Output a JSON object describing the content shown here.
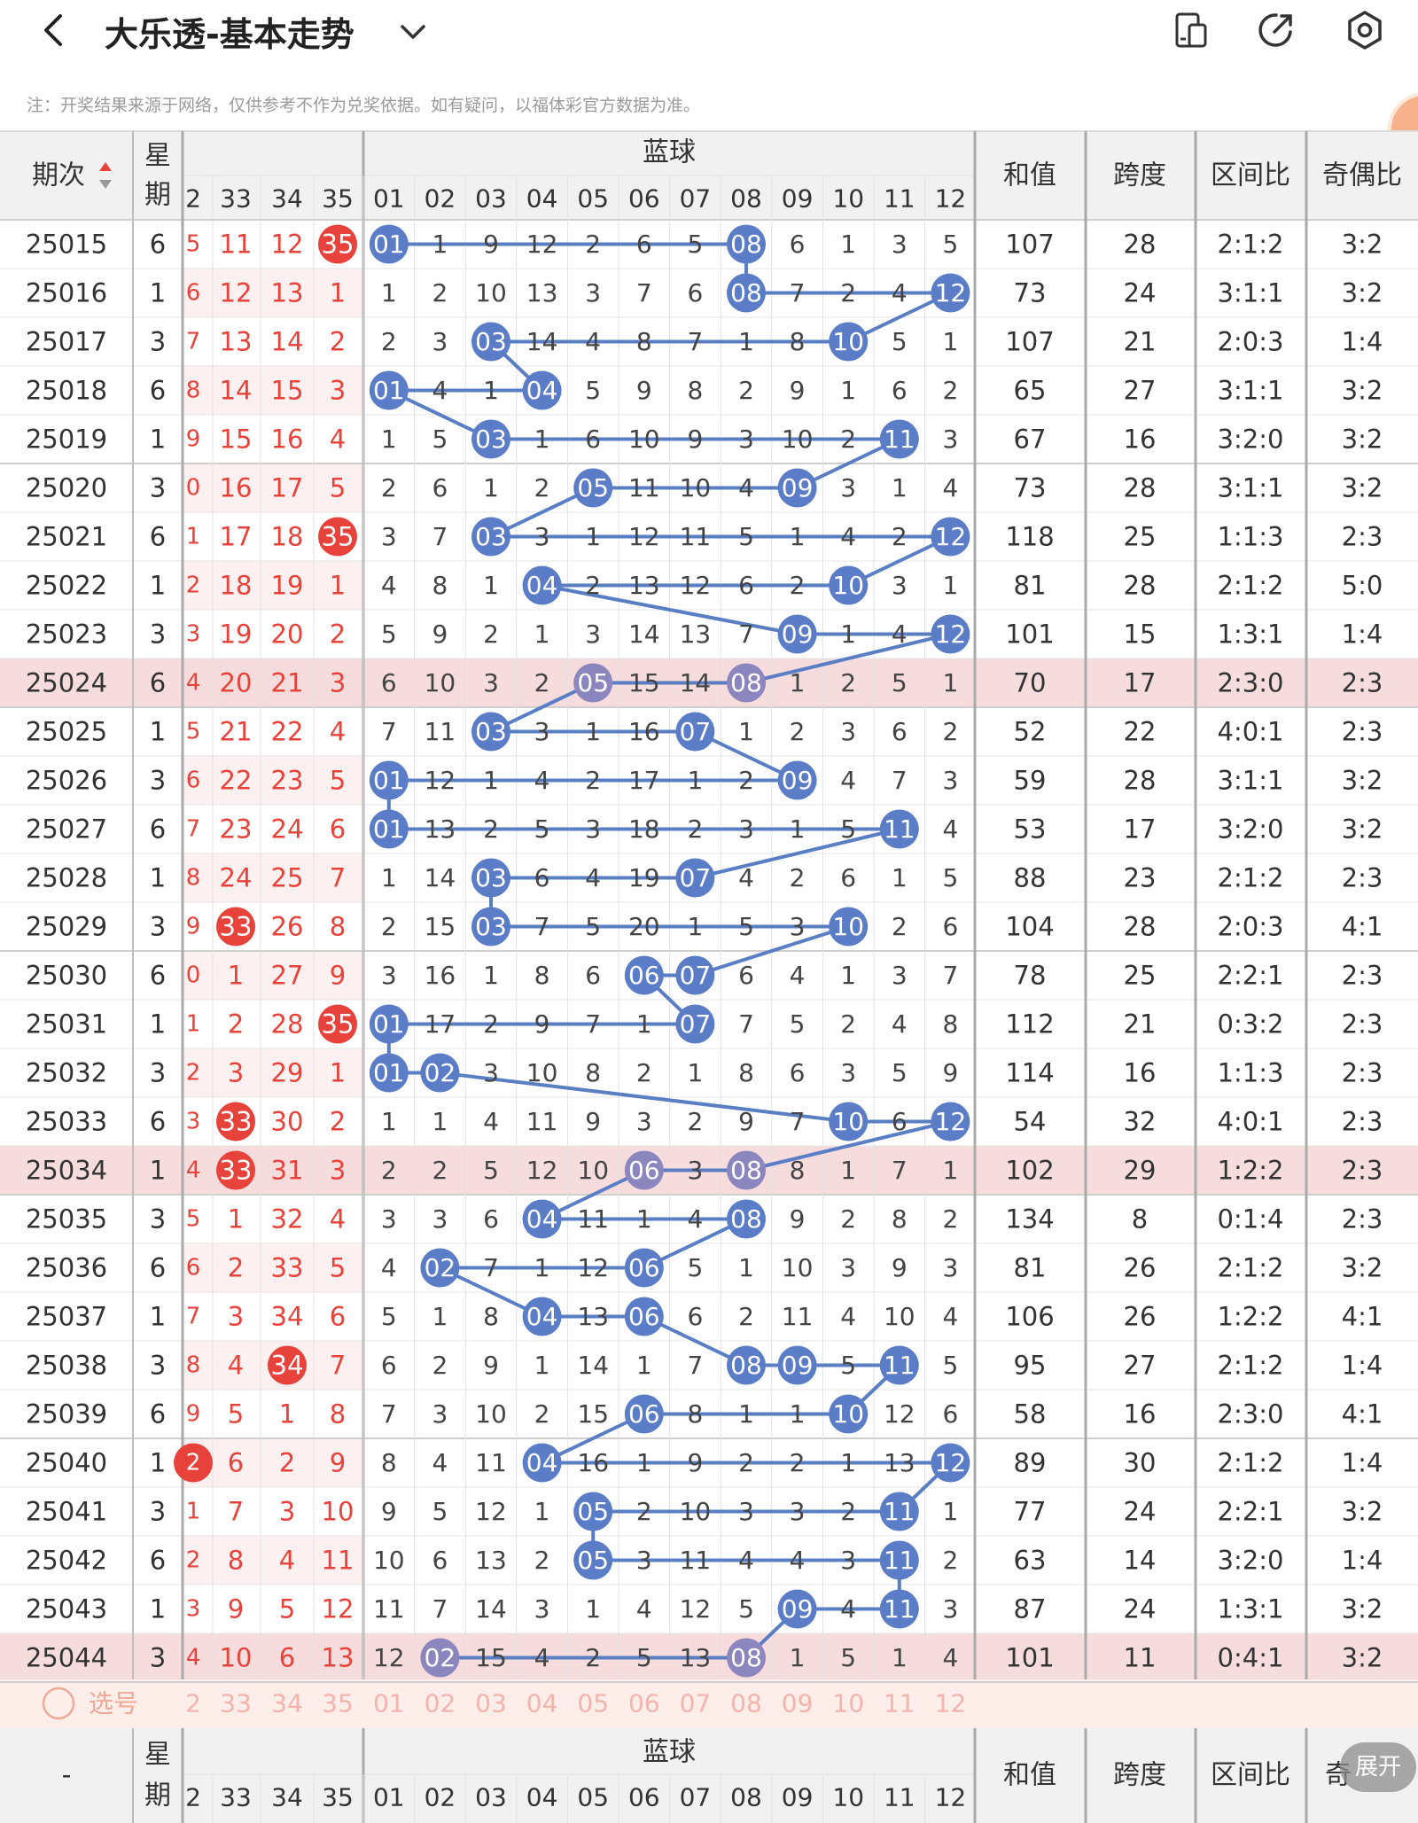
{
  "header": {
    "back_icon": "chevron-left-icon",
    "title": "大乐透-基本走势",
    "dropdown_icon": "chevron-down-icon",
    "icons": [
      "layout-toggle-icon",
      "share-icon",
      "settings-icon"
    ]
  },
  "note": "注：开奖结果来源于网络，仅供参考不作为兑奖依据。如有疑问，以福体彩官方数据为准。",
  "table": {
    "col_issue": "期次",
    "col_week_1": "星",
    "col_week_2": "期",
    "blue_group": "蓝球",
    "col_sum": "和值",
    "col_span": "跨度",
    "col_zone": "区间比",
    "col_odd": "奇偶比",
    "col_odd_partial": "奇",
    "red_headers": [
      "2",
      "33",
      "34",
      "35"
    ],
    "blue_headers": [
      "01",
      "02",
      "03",
      "04",
      "05",
      "06",
      "07",
      "08",
      "09",
      "10",
      "11",
      "12"
    ],
    "footer_issue": "-",
    "select_label": "选号",
    "expand_label": "展开",
    "colors": {
      "red": "#e8433b",
      "blue": "#5b7cc6",
      "line": "#5a7ec4",
      "purple": "#8b86bd",
      "highlight": "#f6dcdd",
      "select_bg": "#fdeee9"
    },
    "rows": [
      {
        "issue": "25015",
        "week": "6",
        "red": [
          "5",
          "11",
          "12",
          "35"
        ],
        "red_hit": [
          false,
          false,
          false,
          true
        ],
        "blue": [
          "01",
          "1",
          "9",
          "12",
          "2",
          "6",
          "5",
          "08",
          "6",
          "1",
          "3",
          "5"
        ],
        "sum": "107",
        "span": "28",
        "zone": "2:1:2",
        "odd": "3:2",
        "hl": false
      },
      {
        "issue": "25016",
        "week": "1",
        "red": [
          "6",
          "12",
          "13",
          "1"
        ],
        "red_hit": [
          false,
          false,
          false,
          false
        ],
        "blue": [
          "1",
          "2",
          "10",
          "13",
          "3",
          "7",
          "6",
          "08",
          "7",
          "2",
          "4",
          "12"
        ],
        "sum": "73",
        "span": "24",
        "zone": "3:1:1",
        "odd": "3:2",
        "hl": false
      },
      {
        "issue": "25017",
        "week": "3",
        "red": [
          "7",
          "13",
          "14",
          "2"
        ],
        "red_hit": [
          false,
          false,
          false,
          false
        ],
        "blue": [
          "2",
          "3",
          "03",
          "14",
          "4",
          "8",
          "7",
          "1",
          "8",
          "10",
          "5",
          "1"
        ],
        "sum": "107",
        "span": "21",
        "zone": "2:0:3",
        "odd": "1:4",
        "hl": false
      },
      {
        "issue": "25018",
        "week": "6",
        "red": [
          "8",
          "14",
          "15",
          "3"
        ],
        "red_hit": [
          false,
          false,
          false,
          false
        ],
        "blue": [
          "01",
          "4",
          "1",
          "04",
          "5",
          "9",
          "8",
          "2",
          "9",
          "1",
          "6",
          "2"
        ],
        "sum": "65",
        "span": "27",
        "zone": "3:1:1",
        "odd": "3:2",
        "hl": false
      },
      {
        "issue": "25019",
        "week": "1",
        "red": [
          "9",
          "15",
          "16",
          "4"
        ],
        "red_hit": [
          false,
          false,
          false,
          false
        ],
        "blue": [
          "1",
          "5",
          "03",
          "1",
          "6",
          "10",
          "9",
          "3",
          "10",
          "2",
          "11",
          "3"
        ],
        "sum": "67",
        "span": "16",
        "zone": "3:2:0",
        "odd": "3:2",
        "hl": false
      },
      {
        "issue": "25020",
        "week": "3",
        "red": [
          "0",
          "16",
          "17",
          "5"
        ],
        "red_hit": [
          false,
          false,
          false,
          false
        ],
        "blue": [
          "2",
          "6",
          "1",
          "2",
          "05",
          "11",
          "10",
          "4",
          "09",
          "3",
          "1",
          "4"
        ],
        "sum": "73",
        "span": "28",
        "zone": "3:1:1",
        "odd": "3:2",
        "hl": false
      },
      {
        "issue": "25021",
        "week": "6",
        "red": [
          "1",
          "17",
          "18",
          "35"
        ],
        "red_hit": [
          false,
          false,
          false,
          true
        ],
        "blue": [
          "3",
          "7",
          "03",
          "3",
          "1",
          "12",
          "11",
          "5",
          "1",
          "4",
          "2",
          "12"
        ],
        "sum": "118",
        "span": "25",
        "zone": "1:1:3",
        "odd": "2:3",
        "hl": false
      },
      {
        "issue": "25022",
        "week": "1",
        "red": [
          "2",
          "18",
          "19",
          "1"
        ],
        "red_hit": [
          false,
          false,
          false,
          false
        ],
        "blue": [
          "4",
          "8",
          "1",
          "04",
          "2",
          "13",
          "12",
          "6",
          "2",
          "10",
          "3",
          "1"
        ],
        "sum": "81",
        "span": "28",
        "zone": "2:1:2",
        "odd": "5:0",
        "hl": false
      },
      {
        "issue": "25023",
        "week": "3",
        "red": [
          "3",
          "19",
          "20",
          "2"
        ],
        "red_hit": [
          false,
          false,
          false,
          false
        ],
        "blue": [
          "5",
          "9",
          "2",
          "1",
          "3",
          "14",
          "13",
          "7",
          "09",
          "1",
          "4",
          "12"
        ],
        "sum": "101",
        "span": "15",
        "zone": "1:3:1",
        "odd": "1:4",
        "hl": false
      },
      {
        "issue": "25024",
        "week": "6",
        "red": [
          "4",
          "20",
          "21",
          "3"
        ],
        "red_hit": [
          false,
          false,
          false,
          false
        ],
        "blue": [
          "6",
          "10",
          "3",
          "2",
          "05",
          "15",
          "14",
          "08",
          "1",
          "2",
          "5",
          "1"
        ],
        "sum": "70",
        "span": "17",
        "zone": "2:3:0",
        "odd": "2:3",
        "hl": true
      },
      {
        "issue": "25025",
        "week": "1",
        "red": [
          "5",
          "21",
          "22",
          "4"
        ],
        "red_hit": [
          false,
          false,
          false,
          false
        ],
        "blue": [
          "7",
          "11",
          "03",
          "3",
          "1",
          "16",
          "07",
          "1",
          "2",
          "3",
          "6",
          "2"
        ],
        "sum": "52",
        "span": "22",
        "zone": "4:0:1",
        "odd": "2:3",
        "hl": false
      },
      {
        "issue": "25026",
        "week": "3",
        "red": [
          "6",
          "22",
          "23",
          "5"
        ],
        "red_hit": [
          false,
          false,
          false,
          false
        ],
        "blue": [
          "01",
          "12",
          "1",
          "4",
          "2",
          "17",
          "1",
          "2",
          "09",
          "4",
          "7",
          "3"
        ],
        "sum": "59",
        "span": "28",
        "zone": "3:1:1",
        "odd": "3:2",
        "hl": false
      },
      {
        "issue": "25027",
        "week": "6",
        "red": [
          "7",
          "23",
          "24",
          "6"
        ],
        "red_hit": [
          false,
          false,
          false,
          false
        ],
        "blue": [
          "01",
          "13",
          "2",
          "5",
          "3",
          "18",
          "2",
          "3",
          "1",
          "5",
          "11",
          "4"
        ],
        "sum": "53",
        "span": "17",
        "zone": "3:2:0",
        "odd": "3:2",
        "hl": false
      },
      {
        "issue": "25028",
        "week": "1",
        "red": [
          "8",
          "24",
          "25",
          "7"
        ],
        "red_hit": [
          false,
          false,
          false,
          false
        ],
        "blue": [
          "1",
          "14",
          "03",
          "6",
          "4",
          "19",
          "07",
          "4",
          "2",
          "6",
          "1",
          "5"
        ],
        "sum": "88",
        "span": "23",
        "zone": "2:1:2",
        "odd": "2:3",
        "hl": false
      },
      {
        "issue": "25029",
        "week": "3",
        "red": [
          "9",
          "33",
          "26",
          "8"
        ],
        "red_hit": [
          false,
          true,
          false,
          false
        ],
        "blue": [
          "2",
          "15",
          "03",
          "7",
          "5",
          "20",
          "1",
          "5",
          "3",
          "10",
          "2",
          "6"
        ],
        "sum": "104",
        "span": "28",
        "zone": "2:0:3",
        "odd": "4:1",
        "hl": false
      },
      {
        "issue": "25030",
        "week": "6",
        "red": [
          "0",
          "1",
          "27",
          "9"
        ],
        "red_hit": [
          false,
          false,
          false,
          false
        ],
        "blue": [
          "3",
          "16",
          "1",
          "8",
          "6",
          "06",
          "07",
          "6",
          "4",
          "1",
          "3",
          "7"
        ],
        "sum": "78",
        "span": "25",
        "zone": "2:2:1",
        "odd": "2:3",
        "hl": false
      },
      {
        "issue": "25031",
        "week": "1",
        "red": [
          "1",
          "2",
          "28",
          "35"
        ],
        "red_hit": [
          false,
          false,
          false,
          true
        ],
        "blue": [
          "01",
          "17",
          "2",
          "9",
          "7",
          "1",
          "07",
          "7",
          "5",
          "2",
          "4",
          "8"
        ],
        "sum": "112",
        "span": "21",
        "zone": "0:3:2",
        "odd": "2:3",
        "hl": false
      },
      {
        "issue": "25032",
        "week": "3",
        "red": [
          "2",
          "3",
          "29",
          "1"
        ],
        "red_hit": [
          false,
          false,
          false,
          false
        ],
        "blue": [
          "01",
          "02",
          "3",
          "10",
          "8",
          "2",
          "1",
          "8",
          "6",
          "3",
          "5",
          "9"
        ],
        "sum": "114",
        "span": "16",
        "zone": "1:1:3",
        "odd": "2:3",
        "hl": false
      },
      {
        "issue": "25033",
        "week": "6",
        "red": [
          "3",
          "33",
          "30",
          "2"
        ],
        "red_hit": [
          false,
          true,
          false,
          false
        ],
        "blue": [
          "1",
          "1",
          "4",
          "11",
          "9",
          "3",
          "2",
          "9",
          "7",
          "10",
          "6",
          "12"
        ],
        "sum": "54",
        "span": "32",
        "zone": "4:0:1",
        "odd": "2:3",
        "hl": false
      },
      {
        "issue": "25034",
        "week": "1",
        "red": [
          "4",
          "33",
          "31",
          "3"
        ],
        "red_hit": [
          false,
          true,
          false,
          false
        ],
        "blue": [
          "2",
          "2",
          "5",
          "12",
          "10",
          "06",
          "3",
          "08",
          "8",
          "1",
          "7",
          "1"
        ],
        "sum": "102",
        "span": "29",
        "zone": "1:2:2",
        "odd": "2:3",
        "hl": true
      },
      {
        "issue": "25035",
        "week": "3",
        "red": [
          "5",
          "1",
          "32",
          "4"
        ],
        "red_hit": [
          false,
          false,
          false,
          false
        ],
        "blue": [
          "3",
          "3",
          "6",
          "04",
          "11",
          "1",
          "4",
          "08",
          "9",
          "2",
          "8",
          "2"
        ],
        "sum": "134",
        "span": "8",
        "zone": "0:1:4",
        "odd": "2:3",
        "hl": false
      },
      {
        "issue": "25036",
        "week": "6",
        "red": [
          "6",
          "2",
          "33",
          "5"
        ],
        "red_hit": [
          false,
          false,
          false,
          false
        ],
        "blue": [
          "4",
          "02",
          "7",
          "1",
          "12",
          "06",
          "5",
          "1",
          "10",
          "3",
          "9",
          "3"
        ],
        "sum": "81",
        "span": "26",
        "zone": "2:1:2",
        "odd": "3:2",
        "hl": false
      },
      {
        "issue": "25037",
        "week": "1",
        "red": [
          "7",
          "3",
          "34",
          "6"
        ],
        "red_hit": [
          false,
          false,
          false,
          false
        ],
        "blue": [
          "5",
          "1",
          "8",
          "04",
          "13",
          "06",
          "6",
          "2",
          "11",
          "4",
          "10",
          "4"
        ],
        "sum": "106",
        "span": "26",
        "zone": "1:2:2",
        "odd": "4:1",
        "hl": false
      },
      {
        "issue": "25038",
        "week": "3",
        "red": [
          "8",
          "4",
          "34",
          "7"
        ],
        "red_hit": [
          false,
          false,
          true,
          false
        ],
        "blue": [
          "6",
          "2",
          "9",
          "1",
          "14",
          "1",
          "7",
          "08",
          "09",
          "5",
          "11",
          "5"
        ],
        "sum": "95",
        "span": "27",
        "zone": "2:1:2",
        "odd": "1:4",
        "hl": false
      },
      {
        "issue": "25039",
        "week": "6",
        "red": [
          "9",
          "5",
          "1",
          "8"
        ],
        "red_hit": [
          false,
          false,
          false,
          false
        ],
        "blue": [
          "7",
          "3",
          "10",
          "2",
          "15",
          "06",
          "8",
          "1",
          "1",
          "10",
          "12",
          "6"
        ],
        "sum": "58",
        "span": "16",
        "zone": "2:3:0",
        "odd": "4:1",
        "hl": false
      },
      {
        "issue": "25040",
        "week": "1",
        "red": [
          "2",
          "6",
          "2",
          "9"
        ],
        "red_hit": [
          true,
          false,
          false,
          false
        ],
        "blue": [
          "8",
          "4",
          "11",
          "04",
          "16",
          "1",
          "9",
          "2",
          "2",
          "1",
          "13",
          "12"
        ],
        "sum": "89",
        "span": "30",
        "zone": "2:1:2",
        "odd": "1:4",
        "hl": false
      },
      {
        "issue": "25041",
        "week": "3",
        "red": [
          "1",
          "7",
          "3",
          "10"
        ],
        "red_hit": [
          false,
          false,
          false,
          false
        ],
        "blue": [
          "9",
          "5",
          "12",
          "1",
          "05",
          "2",
          "10",
          "3",
          "3",
          "2",
          "11",
          "1"
        ],
        "sum": "77",
        "span": "24",
        "zone": "2:2:1",
        "odd": "3:2",
        "hl": false
      },
      {
        "issue": "25042",
        "week": "6",
        "red": [
          "2",
          "8",
          "4",
          "11"
        ],
        "red_hit": [
          false,
          false,
          false,
          false
        ],
        "blue": [
          "10",
          "6",
          "13",
          "2",
          "05",
          "3",
          "11",
          "4",
          "4",
          "3",
          "11",
          "2"
        ],
        "sum": "63",
        "span": "14",
        "zone": "3:2:0",
        "odd": "1:4",
        "hl": false
      },
      {
        "issue": "25043",
        "week": "1",
        "red": [
          "3",
          "9",
          "5",
          "12"
        ],
        "red_hit": [
          false,
          false,
          false,
          false
        ],
        "blue": [
          "11",
          "7",
          "14",
          "3",
          "1",
          "4",
          "12",
          "5",
          "09",
          "4",
          "11",
          "3"
        ],
        "sum": "87",
        "span": "24",
        "zone": "1:3:1",
        "odd": "3:2",
        "hl": false
      },
      {
        "issue": "25044",
        "week": "3",
        "red": [
          "4",
          "10",
          "6",
          "13"
        ],
        "red_hit": [
          false,
          false,
          false,
          false
        ],
        "blue": [
          "12",
          "02",
          "15",
          "4",
          "2",
          "5",
          "13",
          "08",
          "1",
          "5",
          "1",
          "4"
        ],
        "sum": "101",
        "span": "11",
        "zone": "0:4:1",
        "odd": "3:2",
        "hl": true
      }
    ]
  }
}
